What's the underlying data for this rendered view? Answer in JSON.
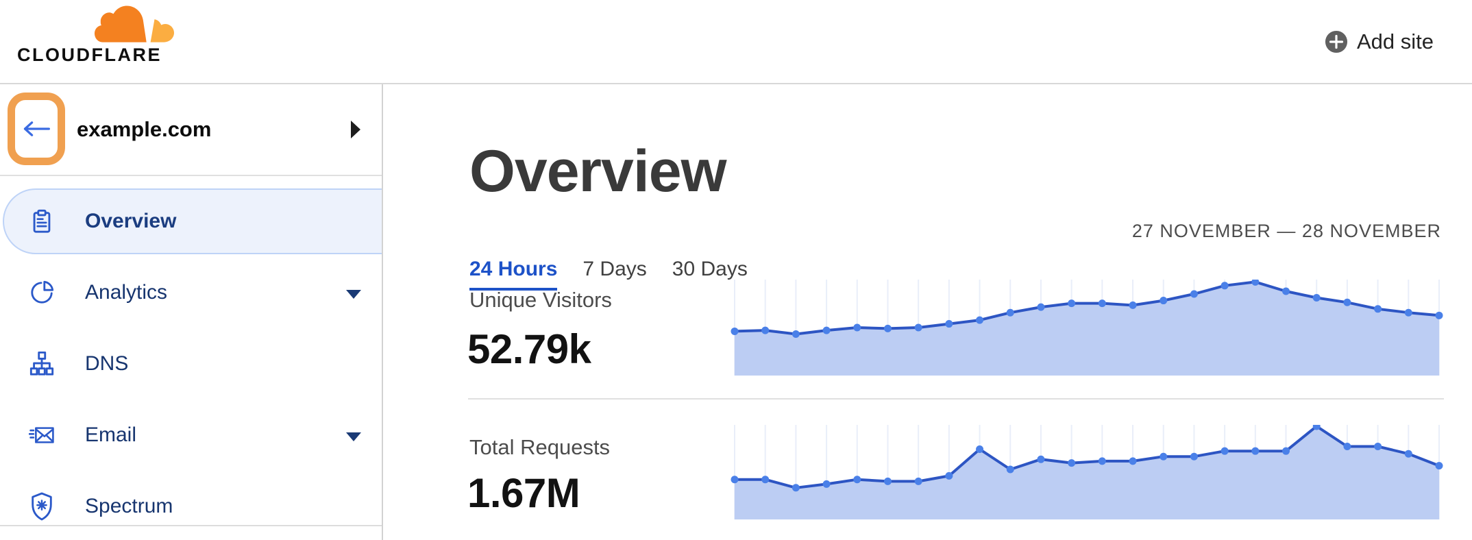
{
  "header": {
    "logo_text": "CLOUDFLARE",
    "add_site_label": "Add site"
  },
  "sidebar": {
    "site_name": "example.com",
    "items": [
      {
        "label": "Overview",
        "icon": "clipboard-icon",
        "selected": true,
        "expandable": false
      },
      {
        "label": "Analytics",
        "icon": "pie-chart-icon",
        "selected": false,
        "expandable": true
      },
      {
        "label": "DNS",
        "icon": "dns-tree-icon",
        "selected": false,
        "expandable": false
      },
      {
        "label": "Email",
        "icon": "email-icon",
        "selected": false,
        "expandable": true
      },
      {
        "label": "Spectrum",
        "icon": "shield-icon",
        "selected": false,
        "expandable": false
      }
    ]
  },
  "main": {
    "title": "Overview",
    "tabs": [
      {
        "label": "24 Hours",
        "active": true
      },
      {
        "label": "7 Days",
        "active": false
      },
      {
        "label": "30 Days",
        "active": false
      }
    ],
    "date_range": "27 NOVEMBER — 28 NOVEMBER",
    "metrics": [
      {
        "label": "Unique Visitors",
        "value": "52.79k"
      },
      {
        "label": "Total Requests",
        "value": "1.67M"
      }
    ]
  },
  "chart_data": [
    {
      "type": "area",
      "title": "Unique Visitors",
      "total_value": "52.79k",
      "x_axis": "hourly points across the 24 Hours period (27–28 November), unlabeled",
      "y_axis": "unlabeled; values are relative heights in percent of chart height",
      "values": [
        46,
        47,
        43,
        47,
        50,
        49,
        50,
        54,
        58,
        66,
        72,
        76,
        76,
        74,
        79,
        86,
        95,
        99,
        89,
        82,
        77,
        70,
        66,
        63
      ],
      "grid": "vertical-only",
      "legend": "none",
      "colors": {
        "line": "#2d55c3",
        "dot": "#4a80e8",
        "fill": "#bccdf3",
        "grid": "#e9eef9"
      }
    },
    {
      "type": "area",
      "title": "Total Requests",
      "total_value": "1.67M",
      "x_axis": "hourly points across the 24 Hours period (27–28 November), unlabeled",
      "y_axis": "unlabeled; values are relative heights in percent of chart height",
      "values": [
        42,
        42,
        33,
        37,
        42,
        40,
        40,
        46,
        75,
        53,
        64,
        60,
        62,
        62,
        67,
        67,
        73,
        73,
        73,
        100,
        78,
        78,
        70,
        57
      ],
      "grid": "vertical-only",
      "legend": "none",
      "colors": {
        "line": "#2d55c3",
        "dot": "#4a80e8",
        "fill": "#bccdf3",
        "grid": "#e9eef9"
      }
    }
  ],
  "colors": {
    "brand_orange": "#f48120",
    "brand_orange_light": "#fbad41",
    "highlight_ring_orange": "#f0a050",
    "link_blue": "#1d52c8",
    "sidebar_icon_blue": "#2b59c9",
    "sidebar_text_navy": "#17356f",
    "selected_item_bg": "#edf2fc",
    "selected_item_border": "#bed3f7"
  }
}
